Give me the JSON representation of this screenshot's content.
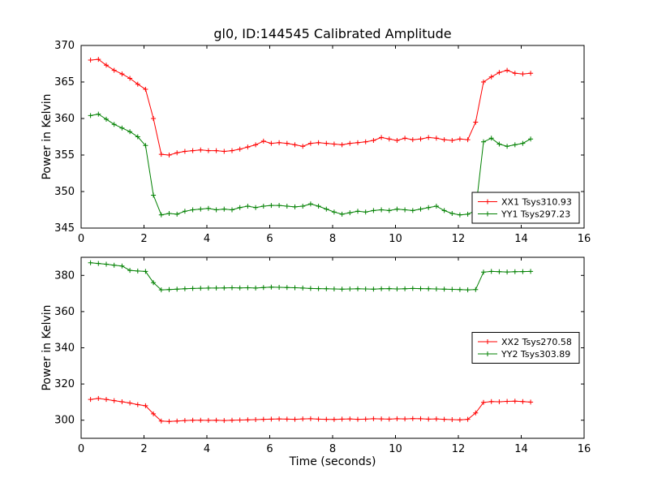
{
  "figure": {
    "title": "gl0, ID:144545 Calibrated Amplitude",
    "xlabel": "Time (seconds)",
    "background": "#ffffff",
    "frame_color": "#000000"
  },
  "chart_data": [
    {
      "type": "line",
      "ylabel": "Power in Kelvin",
      "xlim": [
        0,
        16
      ],
      "ylim": [
        345,
        370
      ],
      "xticks": [
        0,
        2,
        4,
        6,
        8,
        10,
        12,
        14,
        16
      ],
      "yticks": [
        345,
        350,
        355,
        360,
        365,
        370
      ],
      "grid": false,
      "legend_position": "lower right",
      "x": [
        0.3,
        0.55,
        0.8,
        1.05,
        1.3,
        1.55,
        1.8,
        2.05,
        2.3,
        2.55,
        2.8,
        3.05,
        3.3,
        3.55,
        3.8,
        4.05,
        4.3,
        4.55,
        4.8,
        5.05,
        5.3,
        5.55,
        5.8,
        6.05,
        6.3,
        6.55,
        6.8,
        7.05,
        7.3,
        7.55,
        7.8,
        8.05,
        8.3,
        8.55,
        8.8,
        9.05,
        9.3,
        9.55,
        9.8,
        10.05,
        10.3,
        10.55,
        10.8,
        11.05,
        11.3,
        11.55,
        11.8,
        12.05,
        12.3,
        12.55,
        12.8,
        13.05,
        13.3,
        13.55,
        13.8,
        14.05,
        14.3
      ],
      "series": [
        {
          "name": "XX1 Tsys310.93",
          "color": "#ff0000",
          "marker": "plus",
          "values": [
            368.0,
            368.1,
            367.3,
            366.6,
            366.1,
            365.5,
            364.7,
            364.0,
            360.0,
            355.1,
            355.0,
            355.3,
            355.5,
            355.6,
            355.7,
            355.6,
            355.6,
            355.5,
            355.6,
            355.8,
            356.1,
            356.4,
            356.9,
            356.6,
            356.7,
            356.6,
            356.4,
            356.2,
            356.6,
            356.7,
            356.6,
            356.5,
            356.4,
            356.6,
            356.7,
            356.8,
            357.0,
            357.4,
            357.2,
            357.0,
            357.3,
            357.1,
            357.2,
            357.4,
            357.3,
            357.1,
            357.0,
            357.2,
            357.1,
            359.5,
            365.0,
            365.7,
            366.3,
            366.6,
            366.2,
            366.1,
            366.2
          ]
        },
        {
          "name": "YY1 Tsys297.23",
          "color": "#008000",
          "marker": "plus",
          "values": [
            360.4,
            360.6,
            359.9,
            359.2,
            358.7,
            358.2,
            357.5,
            356.3,
            349.5,
            346.8,
            347.0,
            346.9,
            347.3,
            347.5,
            347.6,
            347.7,
            347.5,
            347.6,
            347.5,
            347.8,
            348.0,
            347.8,
            348.0,
            348.1,
            348.1,
            348.0,
            347.9,
            348.0,
            348.3,
            348.0,
            347.6,
            347.2,
            346.9,
            347.1,
            347.3,
            347.2,
            347.4,
            347.5,
            347.4,
            347.6,
            347.5,
            347.4,
            347.6,
            347.8,
            348.0,
            347.4,
            347.0,
            346.8,
            346.9,
            347.4,
            356.8,
            357.3,
            356.5,
            356.2,
            356.4,
            356.6,
            357.2
          ]
        }
      ]
    },
    {
      "type": "line",
      "ylabel": "Power in Kelvin",
      "xlim": [
        0,
        16
      ],
      "ylim": [
        290,
        390
      ],
      "xticks": [
        0,
        2,
        4,
        6,
        8,
        10,
        12,
        14,
        16
      ],
      "yticks": [
        300,
        320,
        340,
        360,
        380
      ],
      "grid": false,
      "legend_position": "center right",
      "x": [
        0.3,
        0.55,
        0.8,
        1.05,
        1.3,
        1.55,
        1.8,
        2.05,
        2.3,
        2.55,
        2.8,
        3.05,
        3.3,
        3.55,
        3.8,
        4.05,
        4.3,
        4.55,
        4.8,
        5.05,
        5.3,
        5.55,
        5.8,
        6.05,
        6.3,
        6.55,
        6.8,
        7.05,
        7.3,
        7.55,
        7.8,
        8.05,
        8.3,
        8.55,
        8.8,
        9.05,
        9.3,
        9.55,
        9.8,
        10.05,
        10.3,
        10.55,
        10.8,
        11.05,
        11.3,
        11.55,
        11.8,
        12.05,
        12.3,
        12.55,
        12.8,
        13.05,
        13.3,
        13.55,
        13.8,
        14.05,
        14.3
      ],
      "series": [
        {
          "name": "XX2 Tsys270.58",
          "color": "#ff0000",
          "marker": "plus",
          "values": [
            311.5,
            312.0,
            311.5,
            310.8,
            310.2,
            309.5,
            308.6,
            308.0,
            303.5,
            299.5,
            299.3,
            299.5,
            299.8,
            300.0,
            300.0,
            299.9,
            300.0,
            299.8,
            300.0,
            300.1,
            300.2,
            300.3,
            300.5,
            300.6,
            300.7,
            300.6,
            300.5,
            300.7,
            300.8,
            300.6,
            300.5,
            300.4,
            300.6,
            300.7,
            300.5,
            300.6,
            300.8,
            300.7,
            300.6,
            300.8,
            300.7,
            300.9,
            300.8,
            300.6,
            300.7,
            300.5,
            300.3,
            300.2,
            300.5,
            304.0,
            309.8,
            310.3,
            310.2,
            310.4,
            310.5,
            310.3,
            310.0
          ]
        },
        {
          "name": "YY2 Tsys303.89",
          "color": "#008000",
          "marker": "plus",
          "values": [
            387.0,
            386.6,
            386.2,
            385.6,
            385.2,
            382.8,
            382.4,
            382.2,
            376.0,
            372.0,
            372.2,
            372.4,
            372.6,
            372.8,
            372.9,
            373.0,
            373.0,
            373.1,
            373.2,
            373.1,
            373.2,
            373.0,
            373.3,
            373.5,
            373.4,
            373.3,
            373.2,
            373.0,
            372.8,
            372.7,
            372.6,
            372.5,
            372.4,
            372.5,
            372.6,
            372.5,
            372.4,
            372.6,
            372.7,
            372.5,
            372.6,
            372.8,
            372.7,
            372.6,
            372.5,
            372.4,
            372.3,
            372.2,
            372.0,
            372.2,
            381.8,
            382.2,
            382.0,
            381.9,
            382.0,
            382.1,
            382.2
          ]
        }
      ]
    }
  ]
}
